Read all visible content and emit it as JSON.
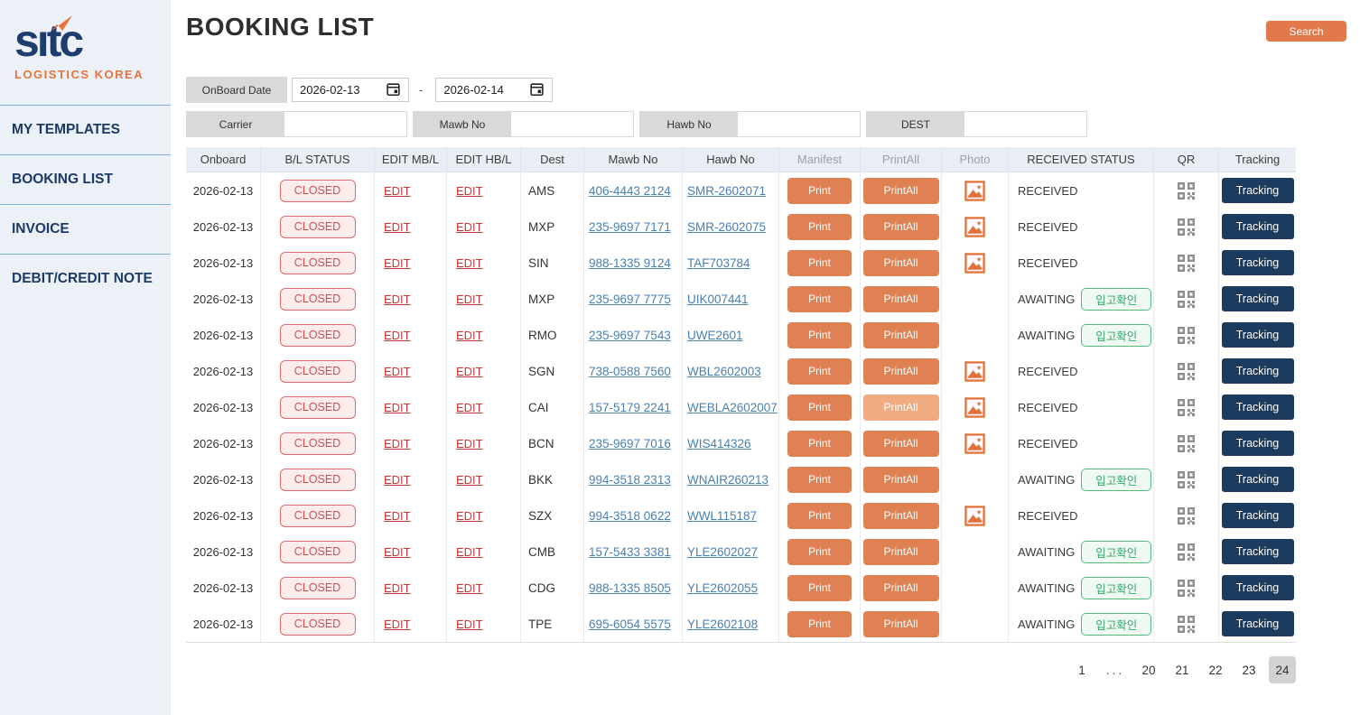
{
  "sidebar": {
    "logo_text": "sitc",
    "logo_subtext": "LOGISTICS KOREA",
    "items": [
      {
        "label": "MY TEMPLATES"
      },
      {
        "label": "BOOKING LIST"
      },
      {
        "label": "INVOICE"
      },
      {
        "label": "DEBIT/CREDIT NOTE"
      }
    ]
  },
  "header": {
    "title": "BOOKING LIST",
    "search_label": "Search"
  },
  "filters": {
    "onboard_date": {
      "label": "OnBoard Date",
      "from": "2026-02-13",
      "to": "2026-02-14",
      "separator": "-"
    },
    "fields": [
      {
        "label": "Carrier",
        "value": ""
      },
      {
        "label": "Mawb No",
        "value": ""
      },
      {
        "label": "Hawb No",
        "value": ""
      },
      {
        "label": "DEST",
        "value": ""
      }
    ]
  },
  "table": {
    "columns": [
      "Onboard",
      "B/L STATUS",
      "EDIT MB/L",
      "EDIT HB/L",
      "Dest",
      "Mawb No",
      "Hawb No",
      "Manifest",
      "PrintAll",
      "Photo",
      "RECEIVED STATUS",
      "QR",
      "Tracking"
    ],
    "muted_columns": [
      "Manifest",
      "PrintAll",
      "Photo"
    ],
    "labels": {
      "bl_status": "CLOSED",
      "edit": "EDIT",
      "print": "Print",
      "printall": "PrintAll",
      "confirm": "입고확인",
      "tracking": "Tracking",
      "received": "RECEIVED",
      "awaiting": "AWAITING"
    },
    "rows": [
      {
        "onboard": "2026-02-13",
        "bl_status": "CLOSED",
        "dest": "AMS",
        "mawb": "406-4443 2124",
        "hawb": "SMR-2602071",
        "photo": true,
        "received": "RECEIVED",
        "printall_disabled": false
      },
      {
        "onboard": "2026-02-13",
        "bl_status": "CLOSED",
        "dest": "MXP",
        "mawb": "235-9697 7171",
        "hawb": "SMR-2602075",
        "photo": true,
        "received": "RECEIVED",
        "printall_disabled": false
      },
      {
        "onboard": "2026-02-13",
        "bl_status": "CLOSED",
        "dest": "SIN",
        "mawb": "988-1335 9124",
        "hawb": "TAF703784",
        "photo": true,
        "received": "RECEIVED",
        "printall_disabled": false
      },
      {
        "onboard": "2026-02-13",
        "bl_status": "CLOSED",
        "dest": "MXP",
        "mawb": "235-9697 7775",
        "hawb": "UIK007441",
        "photo": false,
        "received": "AWAITING",
        "printall_disabled": false
      },
      {
        "onboard": "2026-02-13",
        "bl_status": "CLOSED",
        "dest": "RMO",
        "mawb": "235-9697 7543",
        "hawb": "UWE2601",
        "photo": false,
        "received": "AWAITING",
        "printall_disabled": false
      },
      {
        "onboard": "2026-02-13",
        "bl_status": "CLOSED",
        "dest": "SGN",
        "mawb": "738-0588 7560",
        "hawb": "WBL2602003",
        "photo": true,
        "received": "RECEIVED",
        "printall_disabled": false
      },
      {
        "onboard": "2026-02-13",
        "bl_status": "CLOSED",
        "dest": "CAI",
        "mawb": "157-5179 2241",
        "hawb": "WEBLA2602007",
        "photo": true,
        "received": "RECEIVED",
        "printall_disabled": true
      },
      {
        "onboard": "2026-02-13",
        "bl_status": "CLOSED",
        "dest": "BCN",
        "mawb": "235-9697 7016",
        "hawb": "WIS414326",
        "photo": true,
        "received": "RECEIVED",
        "printall_disabled": false
      },
      {
        "onboard": "2026-02-13",
        "bl_status": "CLOSED",
        "dest": "BKK",
        "mawb": "994-3518 2313",
        "hawb": "WNAIR260213",
        "photo": false,
        "received": "AWAITING",
        "printall_disabled": false
      },
      {
        "onboard": "2026-02-13",
        "bl_status": "CLOSED",
        "dest": "SZX",
        "mawb": "994-3518 0622",
        "hawb": "WWL115187",
        "photo": true,
        "received": "RECEIVED",
        "printall_disabled": false
      },
      {
        "onboard": "2026-02-13",
        "bl_status": "CLOSED",
        "dest": "CMB",
        "mawb": "157-5433 3381",
        "hawb": "YLE2602027",
        "photo": false,
        "received": "AWAITING",
        "printall_disabled": false
      },
      {
        "onboard": "2026-02-13",
        "bl_status": "CLOSED",
        "dest": "CDG",
        "mawb": "988-1335 8505",
        "hawb": "YLE2602055",
        "photo": false,
        "received": "AWAITING",
        "printall_disabled": false
      },
      {
        "onboard": "2026-02-13",
        "bl_status": "CLOSED",
        "dest": "TPE",
        "mawb": "695-6054 5575",
        "hawb": "YLE2602108",
        "photo": false,
        "received": "AWAITING",
        "printall_disabled": false
      }
    ]
  },
  "pagination": {
    "pages": [
      "1",
      "...",
      "20",
      "21",
      "22",
      "23",
      "24"
    ],
    "active": "24"
  },
  "colors": {
    "brand_navy": "#1e3c6e",
    "brand_orange": "#e8733c",
    "button_orange": "#e08153",
    "button_orange_disabled": "#f1ab81",
    "link_blue": "#4a80b0",
    "edit_red": "#c93434",
    "closed_red": "#d05050",
    "confirm_green": "#2fa868",
    "tracking_navy": "#1d3a5f",
    "table_header_bg": "#e9eef5",
    "sidebar_bg": "#ecf1f8",
    "pagination_active_bg": "#d2d2d2"
  }
}
